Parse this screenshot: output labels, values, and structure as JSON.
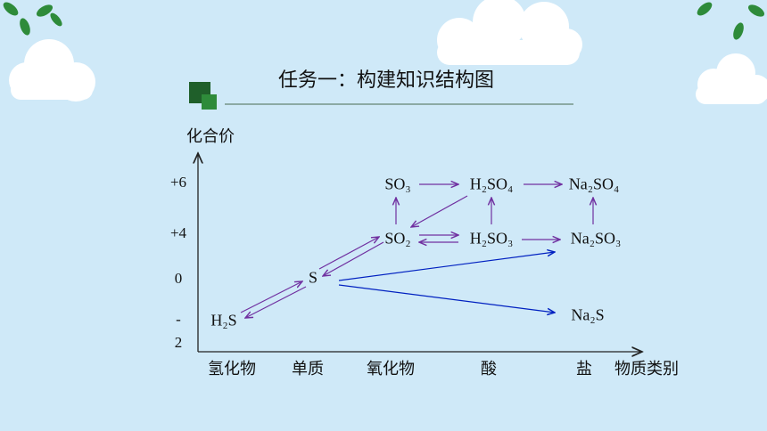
{
  "title": "任务一：构建知识结构图",
  "y_axis": {
    "label": "化合价",
    "ticks": [
      "+6",
      "+4",
      "0",
      "-2"
    ]
  },
  "x_axis": {
    "label": "物质类别",
    "categories": [
      "氢化物",
      "单质",
      "氧化物",
      "酸",
      "盐"
    ]
  },
  "nodes": [
    {
      "label": "SO₃"
    },
    {
      "label": "H₂SO₄"
    },
    {
      "label": "Na₂SO₄"
    },
    {
      "label": "SO₂"
    },
    {
      "label": "H₂SO₃"
    },
    {
      "label": "Na₂SO₃"
    },
    {
      "label": "S"
    },
    {
      "label": "H₂S"
    },
    {
      "label": "Na₂S"
    }
  ]
}
